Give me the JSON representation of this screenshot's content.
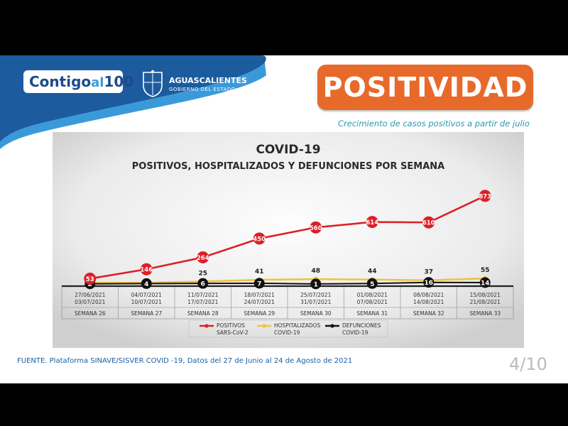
{
  "brand": {
    "logo_part1": "Contigo",
    "logo_part2": "al",
    "logo_part3": "100",
    "state_name": "AGUASCALIENTES",
    "state_subtitle": "GOBIERNO DEL ESTADO"
  },
  "header": {
    "title": "POSITIVIDAD",
    "subtitle": "Crecimiento de casos positivos a partir de julio"
  },
  "footer": {
    "source": "FUENTE. Plataforma SINAVE/SISVER COVID -19, Datos del 27 de Junio al  24 de Agosto de 2021",
    "page": "4/10"
  },
  "colors": {
    "positivos": "#dd1f26",
    "hospitalizados": "#f2c23e",
    "defunciones": "#111111",
    "accent_orange": "#e76a2a",
    "brand_blue": "#1c5c9e"
  },
  "chart_data": {
    "type": "line",
    "title": "COVID-19",
    "subtitle": "POSITIVOS, HOSPITALIZADOS Y DEFUNCIONES POR SEMANA",
    "categories": [
      {
        "dates": [
          "27/06/2021",
          "03/07/2021"
        ],
        "week": "SEMANA 26"
      },
      {
        "dates": [
          "04/07/2021",
          "10/07/2021"
        ],
        "week": "SEMANA 27"
      },
      {
        "dates": [
          "11/07/2021",
          "17/07/2021"
        ],
        "week": "SEMANA 28"
      },
      {
        "dates": [
          "18/07/2021",
          "24/07/2021"
        ],
        "week": "SEMANA 29"
      },
      {
        "dates": [
          "25/07/2021",
          "31/07/2021"
        ],
        "week": "SEMANA 30"
      },
      {
        "dates": [
          "01/08/2021",
          "07/08/2021"
        ],
        "week": "SEMANA 31"
      },
      {
        "dates": [
          "08/08/2021",
          "14/08/2021"
        ],
        "week": "SEMANA 32"
      },
      {
        "dates": [
          "15/08/2021",
          "21/08/2021"
        ],
        "week": "SEMANA 33"
      }
    ],
    "series": [
      {
        "key": "positivos",
        "name": [
          "POSITIVOS",
          "SARS-CoV-2"
        ],
        "values": [
          53,
          146,
          264,
          450,
          560,
          614,
          610,
          873
        ]
      },
      {
        "key": "hospitalizados",
        "name": [
          "HOSPITALIZADOS",
          "COVID-19"
        ],
        "values": [
          12,
          13,
          25,
          41,
          48,
          44,
          37,
          55
        ]
      },
      {
        "key": "defunciones",
        "name": [
          "DEFUNCIONES",
          "COVID-19"
        ],
        "values": [
          2,
          4,
          6,
          7,
          1,
          5,
          16,
          14
        ]
      }
    ],
    "ylim": [
      0,
      900
    ],
    "grid": false,
    "legend_position": "bottom"
  }
}
